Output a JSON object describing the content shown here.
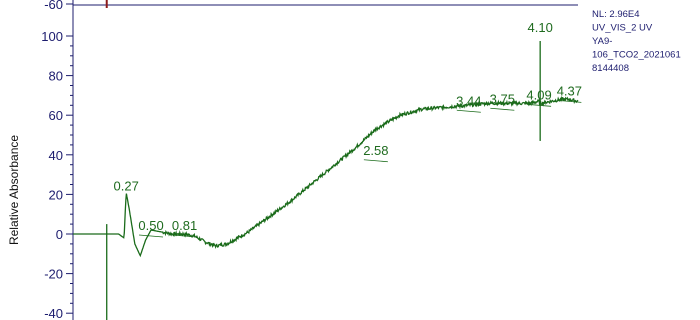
{
  "chart_data": {
    "type": "line",
    "ylabel": "Relative Absorbance",
    "ylim": [
      -40,
      100
    ],
    "yticks": [
      -60,
      -40,
      -20,
      0,
      20,
      40,
      60,
      80,
      100
    ],
    "grid": false,
    "x": [
      0.0,
      0.1,
      0.2,
      0.25,
      0.27,
      0.3,
      0.35,
      0.4,
      0.45,
      0.5,
      0.6,
      0.7,
      0.81,
      0.9,
      1.0,
      1.1,
      1.2,
      1.4,
      1.6,
      1.8,
      2.0,
      2.2,
      2.4,
      2.58,
      2.8,
      3.0,
      3.2,
      3.44,
      3.6,
      3.75,
      3.9,
      4.0,
      4.09,
      4.1,
      4.2,
      4.3,
      4.37,
      4.45
    ],
    "y": [
      0,
      0,
      0,
      -2,
      21,
      12,
      -5,
      -11,
      -3,
      2,
      1,
      0,
      0,
      -1,
      -4,
      -6,
      -5,
      1,
      9,
      17,
      26,
      35,
      44,
      53,
      60,
      63,
      64,
      65,
      66,
      66,
      66,
      66,
      67,
      66,
      67,
      68,
      68,
      67
    ],
    "peak_labels": [
      "0.27",
      "0.50",
      "0.81",
      "2.58",
      "3.44",
      "3.75",
      "4.09",
      "4.10",
      "4.37"
    ],
    "peak_label_y": [
      20,
      0,
      0,
      38,
      63,
      64,
      66,
      100,
      68
    ],
    "info_lines": [
      "NL: 2.96E4",
      "UV_VIS_2 UV",
      "YA9-",
      "106_TCO2_2021061",
      "8144408"
    ]
  },
  "colors": {
    "trace": "#1a6b1a",
    "axis": "#1c1c6e",
    "spike": "#8b1a1a"
  }
}
